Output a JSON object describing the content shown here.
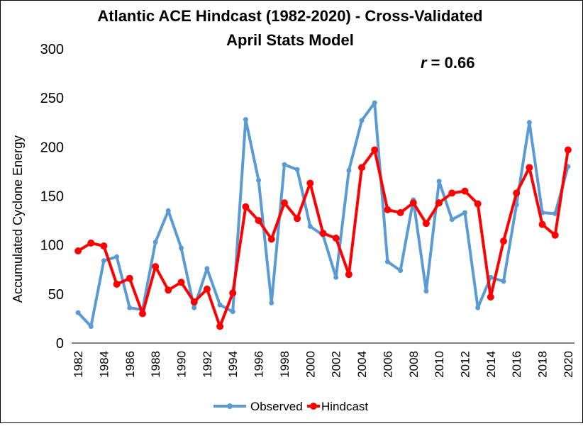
{
  "chart_data": {
    "type": "line",
    "title_line1": "Atlantic ACE Hindcast (1982-2020) - Cross-Validated",
    "title_line2": "April Stats Model",
    "annotation": {
      "var": "r",
      "text": " = 0.66"
    },
    "ylabel": "Accumulated Cyclone Energy",
    "xlabel": "",
    "ylim": [
      0,
      300
    ],
    "yticks": [
      0,
      50,
      100,
      150,
      200,
      250,
      300
    ],
    "x": [
      1982,
      1983,
      1984,
      1985,
      1986,
      1987,
      1988,
      1989,
      1990,
      1991,
      1992,
      1993,
      1994,
      1995,
      1996,
      1997,
      1998,
      1999,
      2000,
      2001,
      2002,
      2003,
      2004,
      2005,
      2006,
      2007,
      2008,
      2009,
      2010,
      2011,
      2012,
      2013,
      2014,
      2015,
      2016,
      2017,
      2018,
      2019,
      2020
    ],
    "xtick_labels": [
      "1982",
      "1984",
      "1986",
      "1988",
      "1990",
      "1992",
      "1994",
      "1996",
      "1998",
      "2000",
      "2002",
      "2004",
      "2006",
      "2008",
      "2010",
      "2012",
      "2014",
      "2016",
      "2018",
      "2020"
    ],
    "grid": false,
    "legend_position": "bottom",
    "series": [
      {
        "name": "Observed",
        "color": "#5B9BD5",
        "values": [
          31,
          17,
          84,
          88,
          36,
          34,
          103,
          135,
          97,
          36,
          76,
          39,
          32,
          228,
          166,
          41,
          182,
          177,
          119,
          110,
          67,
          176,
          227,
          245,
          83,
          74,
          146,
          53,
          165,
          126,
          133,
          36,
          67,
          63,
          141,
          225,
          133,
          132,
          180
        ]
      },
      {
        "name": "Hindcast",
        "color": "#FF0000",
        "values": [
          94,
          102,
          99,
          60,
          66,
          30,
          78,
          54,
          62,
          42,
          55,
          17,
          51,
          139,
          125,
          106,
          143,
          127,
          163,
          112,
          107,
          70,
          179,
          197,
          136,
          133,
          143,
          122,
          143,
          153,
          155,
          142,
          47,
          104,
          153,
          179,
          121,
          110,
          197
        ]
      }
    ]
  }
}
